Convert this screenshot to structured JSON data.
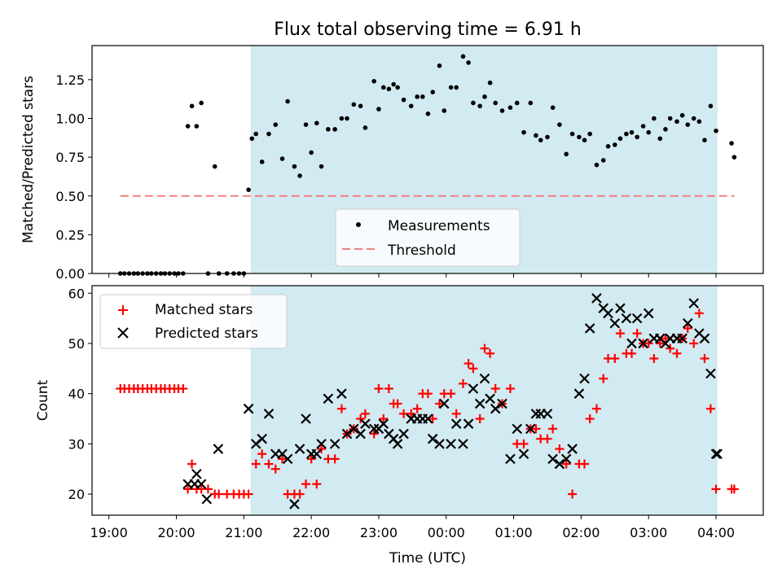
{
  "chart_data": [
    {
      "type": "scatter",
      "title": "Flux total observing time = 6.91 h",
      "xlabel": "",
      "ylabel": "Matched/Predicted stars",
      "ylim": [
        0,
        1.47
      ],
      "yticks": [
        "0.00",
        "0.25",
        "0.50",
        "0.75",
        "1.00",
        "1.25"
      ],
      "shaded_interval": {
        "start": 21.1,
        "end": 28.02,
        "color": "#add8e6"
      },
      "legend_position": "lower center",
      "series": [
        {
          "name": "Measurements",
          "marker": "dot",
          "color": "#000000",
          "x": [
            19.17,
            19.23,
            19.3,
            19.37,
            19.43,
            19.5,
            19.57,
            19.63,
            19.7,
            19.77,
            19.83,
            19.9,
            19.97,
            20.03,
            20.1,
            20.17,
            20.23,
            20.3,
            20.37,
            20.47,
            20.57,
            20.63,
            20.75,
            20.85,
            20.93,
            21.0,
            21.07,
            21.12,
            21.18,
            21.27,
            21.37,
            21.47,
            21.57,
            21.65,
            21.75,
            21.83,
            21.92,
            22.0,
            22.08,
            22.15,
            22.25,
            22.35,
            22.45,
            22.53,
            22.63,
            22.73,
            22.8,
            22.93,
            23.0,
            23.07,
            23.15,
            23.22,
            23.28,
            23.37,
            23.48,
            23.57,
            23.65,
            23.73,
            23.8,
            23.9,
            23.97,
            24.07,
            24.15,
            24.25,
            24.33,
            24.4,
            24.5,
            24.57,
            24.65,
            24.73,
            24.83,
            24.95,
            25.05,
            25.15,
            25.25,
            25.33,
            25.4,
            25.5,
            25.58,
            25.68,
            25.78,
            25.87,
            25.97,
            26.05,
            26.13,
            26.23,
            26.33,
            26.4,
            26.5,
            26.58,
            26.67,
            26.75,
            26.83,
            26.92,
            27.0,
            27.08,
            27.17,
            27.25,
            27.32,
            27.42,
            27.5,
            27.58,
            27.67,
            27.75,
            27.83,
            27.92,
            28.0,
            28.23,
            28.27
          ],
          "y": [
            0,
            0,
            0,
            0,
            0,
            0,
            0,
            0,
            0,
            0,
            0,
            0,
            0,
            0,
            0,
            0.95,
            1.08,
            0.95,
            1.1,
            0,
            0.69,
            0,
            0,
            0,
            0,
            0,
            0.54,
            0.87,
            0.9,
            0.72,
            0.9,
            0.96,
            0.74,
            1.11,
            0.69,
            0.63,
            0.96,
            0.78,
            0.97,
            0.69,
            0.93,
            0.93,
            1.0,
            1.0,
            1.09,
            1.08,
            0.94,
            1.24,
            1.06,
            1.2,
            1.19,
            1.22,
            1.2,
            1.12,
            1.08,
            1.14,
            1.14,
            1.03,
            1.17,
            1.34,
            1.05,
            1.2,
            1.2,
            1.4,
            1.36,
            1.1,
            1.08,
            1.14,
            1.23,
            1.1,
            1.05,
            1.07,
            1.1,
            0.91,
            1.1,
            0.89,
            0.86,
            0.88,
            1.07,
            0.96,
            0.77,
            0.9,
            0.88,
            0.86,
            0.9,
            0.7,
            0.73,
            0.82,
            0.83,
            0.87,
            0.9,
            0.91,
            0.88,
            0.95,
            0.91,
            1.0,
            0.87,
            0.93,
            1.0,
            0.98,
            1.02,
            0.96,
            1.0,
            0.98,
            0.86,
            1.08,
            0.92,
            0.84,
            0.75
          ]
        },
        {
          "name": "Threshold",
          "style": "dashed",
          "color": "#f08080",
          "x": [
            19.17,
            28.27
          ],
          "y": [
            0.5,
            0.5
          ]
        }
      ]
    },
    {
      "type": "scatter",
      "title": "",
      "xlabel": "Time (UTC)",
      "ylabel": "Count",
      "ylim": [
        15.8,
        61.5
      ],
      "yticks": [
        "20",
        "30",
        "40",
        "50",
        "60"
      ],
      "xlim": [
        18.75,
        28.7
      ],
      "xticks": [
        "19:00",
        "20:00",
        "21:00",
        "22:00",
        "23:00",
        "00:00",
        "01:00",
        "02:00",
        "03:00",
        "04:00"
      ],
      "xtick_values": [
        19,
        20,
        21,
        22,
        23,
        24,
        25,
        26,
        27,
        28
      ],
      "shaded_interval": {
        "start": 21.1,
        "end": 28.02,
        "color": "#add8e6"
      },
      "legend_position": "upper left",
      "series": [
        {
          "name": "Matched stars",
          "marker": "plus",
          "color": "#ff0000",
          "x": [
            19.17,
            19.23,
            19.3,
            19.37,
            19.43,
            19.5,
            19.57,
            19.63,
            19.7,
            19.77,
            19.83,
            19.9,
            19.97,
            20.03,
            20.1,
            20.17,
            20.23,
            20.3,
            20.37,
            20.47,
            20.57,
            20.63,
            20.75,
            20.85,
            20.93,
            21.0,
            21.07,
            21.18,
            21.27,
            21.37,
            21.47,
            21.57,
            21.65,
            21.75,
            21.83,
            21.92,
            22.0,
            22.08,
            22.15,
            22.25,
            22.35,
            22.45,
            22.53,
            22.63,
            22.73,
            22.8,
            22.93,
            23.0,
            23.07,
            23.15,
            23.22,
            23.28,
            23.37,
            23.48,
            23.57,
            23.65,
            23.73,
            23.8,
            23.9,
            23.97,
            24.07,
            24.15,
            24.25,
            24.33,
            24.4,
            24.5,
            24.57,
            24.65,
            24.73,
            24.83,
            24.95,
            25.05,
            25.15,
            25.25,
            25.33,
            25.4,
            25.5,
            25.58,
            25.68,
            25.78,
            25.87,
            25.97,
            26.05,
            26.13,
            26.23,
            26.33,
            26.4,
            26.5,
            26.58,
            26.67,
            26.75,
            26.83,
            26.92,
            27.0,
            27.08,
            27.17,
            27.25,
            27.32,
            27.42,
            27.5,
            27.58,
            27.67,
            27.75,
            27.83,
            27.92,
            28.0,
            28.23,
            28.27
          ],
          "y": [
            41,
            41,
            41,
            41,
            41,
            41,
            41,
            41,
            41,
            41,
            41,
            41,
            41,
            41,
            41,
            21,
            26,
            21,
            21,
            21,
            20,
            20,
            20,
            20,
            20,
            20,
            20,
            26,
            28,
            26,
            25,
            27,
            20,
            20,
            20,
            22,
            27,
            22,
            29,
            27,
            27,
            37,
            32,
            33,
            35,
            36,
            32,
            41,
            35,
            41,
            38,
            38,
            36,
            36,
            37,
            40,
            40,
            35,
            38,
            40,
            40,
            36,
            42,
            46,
            45,
            35,
            49,
            48,
            41,
            38,
            41,
            30,
            30,
            33,
            33,
            31,
            31,
            33,
            29,
            26,
            20,
            26,
            26,
            35,
            37,
            43,
            47,
            47,
            52,
            48,
            48,
            52,
            50,
            50,
            47,
            50,
            51,
            49,
            48,
            51,
            53,
            50,
            56,
            47,
            37,
            21,
            21,
            21
          ],
          "hidden_note": ""
        },
        {
          "name": "Predicted stars",
          "marker": "x",
          "color": "#000000",
          "x": [
            20.17,
            20.27,
            20.3,
            20.37,
            20.45,
            20.62,
            21.07,
            21.18,
            21.27,
            21.37,
            21.47,
            21.57,
            21.65,
            21.75,
            21.83,
            21.92,
            22.0,
            22.08,
            22.15,
            22.25,
            22.35,
            22.45,
            22.53,
            22.63,
            22.73,
            22.8,
            22.93,
            23.0,
            23.07,
            23.15,
            23.22,
            23.28,
            23.37,
            23.48,
            23.57,
            23.65,
            23.73,
            23.8,
            23.9,
            23.97,
            24.07,
            24.15,
            24.25,
            24.33,
            24.4,
            24.5,
            24.57,
            24.65,
            24.73,
            24.83,
            24.95,
            25.05,
            25.15,
            25.25,
            25.33,
            25.4,
            25.5,
            25.58,
            25.68,
            25.78,
            25.87,
            25.97,
            26.05,
            26.13,
            26.23,
            26.33,
            26.4,
            26.5,
            26.58,
            26.67,
            26.75,
            26.83,
            26.92,
            27.0,
            27.08,
            27.17,
            27.25,
            27.32,
            27.42,
            27.5,
            27.58,
            27.67,
            27.75,
            27.83,
            27.92,
            28.0,
            28.02
          ],
          "y": [
            22,
            22,
            24,
            22,
            19,
            29,
            37,
            30,
            31,
            36,
            28,
            28,
            27,
            18,
            29,
            35,
            28,
            28,
            30,
            39,
            30,
            40,
            32,
            33,
            32,
            34,
            33,
            33,
            34,
            32,
            31,
            30,
            32,
            35,
            35,
            35,
            35,
            31,
            30,
            38,
            30,
            34,
            30,
            34,
            41,
            38,
            43,
            39,
            37,
            38,
            27,
            33,
            28,
            33,
            36,
            36,
            36,
            27,
            26,
            27,
            29,
            40,
            43,
            53,
            59,
            57,
            56,
            54,
            57,
            55,
            50,
            55,
            50,
            56,
            51,
            51,
            50,
            51,
            51,
            51,
            54,
            58,
            52,
            51,
            44,
            28,
            28
          ]
        }
      ]
    }
  ]
}
